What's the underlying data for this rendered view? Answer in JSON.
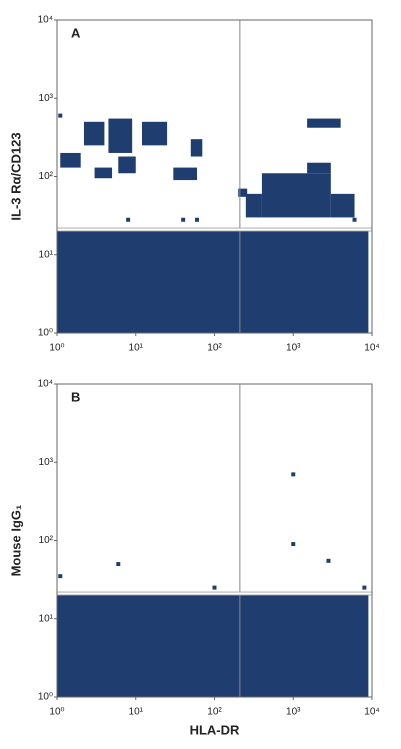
{
  "chart_data": [
    {
      "type": "density",
      "panel": "A",
      "y_label": "IL-3 Rα/CD123",
      "color": "#1f3e6f",
      "log": true,
      "xlim": [
        1,
        10000
      ],
      "ylim": [
        1,
        10000
      ],
      "xticks": [
        {
          "value": 1,
          "label": "10⁰"
        },
        {
          "value": 10,
          "label": "10¹"
        },
        {
          "value": 100,
          "label": "10²"
        },
        {
          "value": 1000,
          "label": "10³"
        },
        {
          "value": 10000,
          "label": "10⁴"
        }
      ],
      "yticks": [
        {
          "value": 1,
          "label": "10⁰"
        },
        {
          "value": 10,
          "label": "10¹"
        },
        {
          "value": 100,
          "label": "10²"
        },
        {
          "value": 1000,
          "label": "10³"
        },
        {
          "value": 10000,
          "label": "10⁴"
        }
      ],
      "gates": {
        "x": 210,
        "y": 21
      },
      "regions": [
        {
          "x": [
            1,
            9000
          ],
          "y": [
            1,
            20
          ]
        },
        {
          "x": [
            2.2,
            4
          ],
          "y": [
            250,
            500
          ]
        },
        {
          "x": [
            4.5,
            9
          ],
          "y": [
            200,
            550
          ]
        },
        {
          "x": [
            6,
            10
          ],
          "y": [
            110,
            180
          ]
        },
        {
          "x": [
            1.1,
            2
          ],
          "y": [
            130,
            200
          ]
        },
        {
          "x": [
            12,
            25
          ],
          "y": [
            250,
            500
          ]
        },
        {
          "x": [
            50,
            70
          ],
          "y": [
            180,
            300
          ]
        },
        {
          "x": [
            30,
            60
          ],
          "y": [
            90,
            130
          ]
        },
        {
          "x": [
            3,
            5
          ],
          "y": [
            95,
            130
          ]
        },
        {
          "x": [
            400,
            3000
          ],
          "y": [
            30,
            110
          ]
        },
        {
          "x": [
            250,
            400
          ],
          "y": [
            30,
            60
          ]
        },
        {
          "x": [
            3000,
            6000
          ],
          "y": [
            30,
            60
          ]
        },
        {
          "x": [
            1500,
            3000
          ],
          "y": [
            110,
            150
          ]
        },
        {
          "x": [
            1500,
            4000
          ],
          "y": [
            420,
            550
          ]
        },
        {
          "x": [
            200,
            260
          ],
          "y": [
            55,
            70
          ]
        }
      ],
      "points": {
        "x": [
          8,
          40,
          60,
          1.1,
          6000
        ],
        "y": [
          28,
          28,
          28,
          600,
          28
        ]
      }
    },
    {
      "type": "density",
      "panel": "B",
      "y_label": "Mouse IgG₁",
      "x_label": "HLA-DR",
      "color": "#1f3e6f",
      "log": true,
      "xlim": [
        1,
        10000
      ],
      "ylim": [
        1,
        10000
      ],
      "xticks": [
        {
          "value": 1,
          "label": "10⁰"
        },
        {
          "value": 10,
          "label": "10¹"
        },
        {
          "value": 100,
          "label": "10²"
        },
        {
          "value": 1000,
          "label": "10³"
        },
        {
          "value": 10000,
          "label": "10⁴"
        }
      ],
      "yticks": [
        {
          "value": 1,
          "label": "10⁰"
        },
        {
          "value": 10,
          "label": "10¹"
        },
        {
          "value": 100,
          "label": "10²"
        },
        {
          "value": 1000,
          "label": "10³"
        },
        {
          "value": 10000,
          "label": "10⁴"
        }
      ],
      "gates": {
        "x": 210,
        "y": 21
      },
      "regions": [
        {
          "x": [
            1,
            9000
          ],
          "y": [
            1,
            20
          ]
        }
      ],
      "points": {
        "x": [
          1000,
          1000,
          2800,
          6,
          1.1,
          100,
          8000
        ],
        "y": [
          700,
          90,
          55,
          50,
          35,
          25,
          25
        ]
      }
    }
  ]
}
